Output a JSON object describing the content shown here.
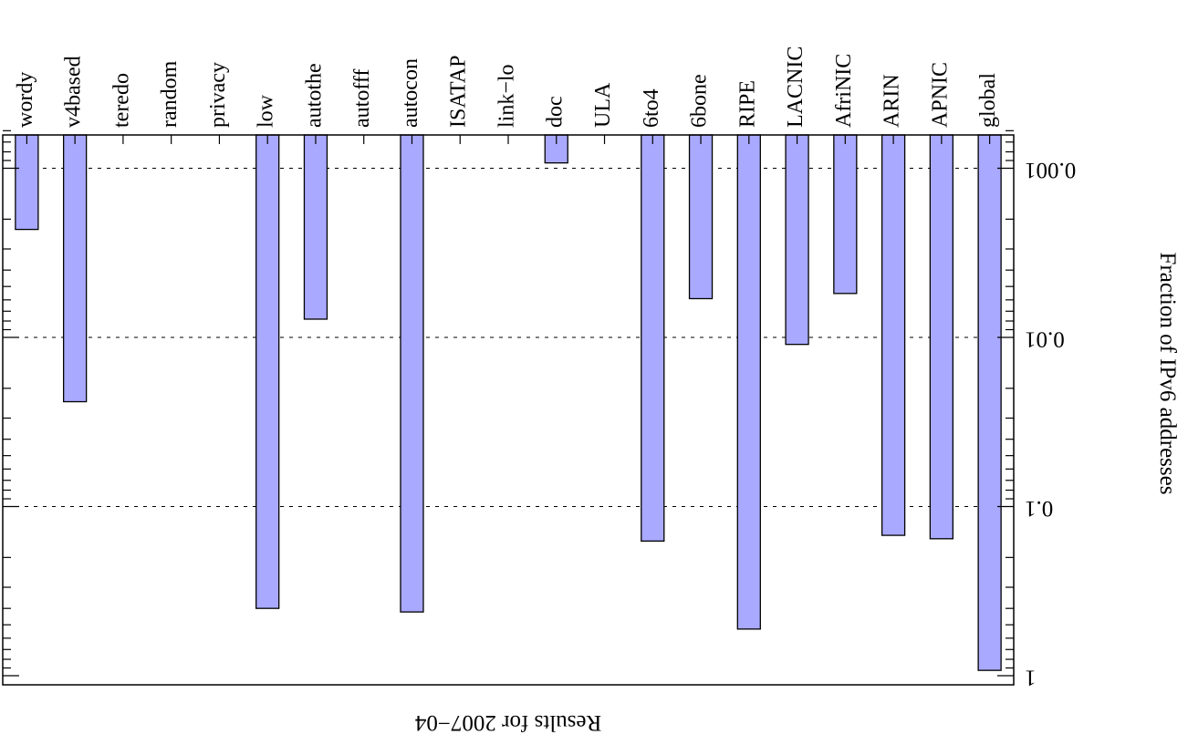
{
  "chart_data": {
    "type": "bar",
    "orientation": "rotated-180",
    "title": "",
    "xlabel": "Results for 2007−04",
    "ylabel": "Fraction of IPv6 addresses",
    "scale": "log",
    "ylim": [
      0.0006,
      1
    ],
    "yticks": [
      {
        "value": 0.001,
        "label": "0.001"
      },
      {
        "value": 0.01,
        "label": "0.01"
      },
      {
        "value": 0.1,
        "label": "0.1"
      },
      {
        "value": 1,
        "label": "1"
      }
    ],
    "grid": true,
    "categories": [
      "global",
      "APNIC",
      "ARIN",
      "AfriNIC",
      "LACNIC",
      "RIPE",
      "6bone",
      "6to4",
      "ULA",
      "doc",
      "link−lo",
      "ISATAP",
      "autocon",
      "autofff",
      "autothe",
      "low",
      "privacy",
      "random",
      "teredo",
      "v4based",
      "wordy"
    ],
    "values": [
      0.93,
      0.155,
      0.148,
      0.0055,
      0.011,
      0.53,
      0.0059,
      0.16,
      null,
      0.00093,
      null,
      null,
      0.42,
      null,
      0.0078,
      0.4,
      null,
      null,
      null,
      0.024,
      0.0023
    ]
  }
}
